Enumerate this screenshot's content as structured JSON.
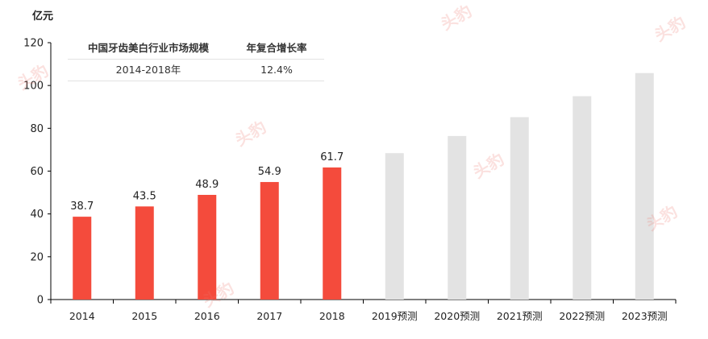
{
  "unit_label": "亿元",
  "table": {
    "header": [
      "中国牙齿美白行业市场规模",
      "年复合增长率"
    ],
    "row": [
      "2014-2018年",
      "12.4%"
    ]
  },
  "watermark_text": "头豹",
  "colors": {
    "actual": "#f44b3c",
    "forecast": "#e3e3e3",
    "axis": "#000000"
  },
  "chart_data": {
    "type": "bar",
    "categories": [
      "2014",
      "2015",
      "2016",
      "2017",
      "2018",
      "2019预测",
      "2020预测",
      "2021预测",
      "2022预测",
      "2023预测"
    ],
    "values": [
      38.7,
      43.5,
      48.9,
      54.9,
      61.7,
      68.4,
      76.4,
      85.2,
      95.0,
      105.8
    ],
    "data_labels": [
      "38.7",
      "43.5",
      "48.9",
      "54.9",
      "61.7",
      "",
      "",
      "",
      "",
      ""
    ],
    "forecast_from_index": 5,
    "ylim": [
      0,
      120
    ],
    "yticks": [
      0,
      20,
      40,
      60,
      80,
      100,
      120
    ],
    "ylabel": "亿元",
    "xlabel": "",
    "grid": false
  }
}
